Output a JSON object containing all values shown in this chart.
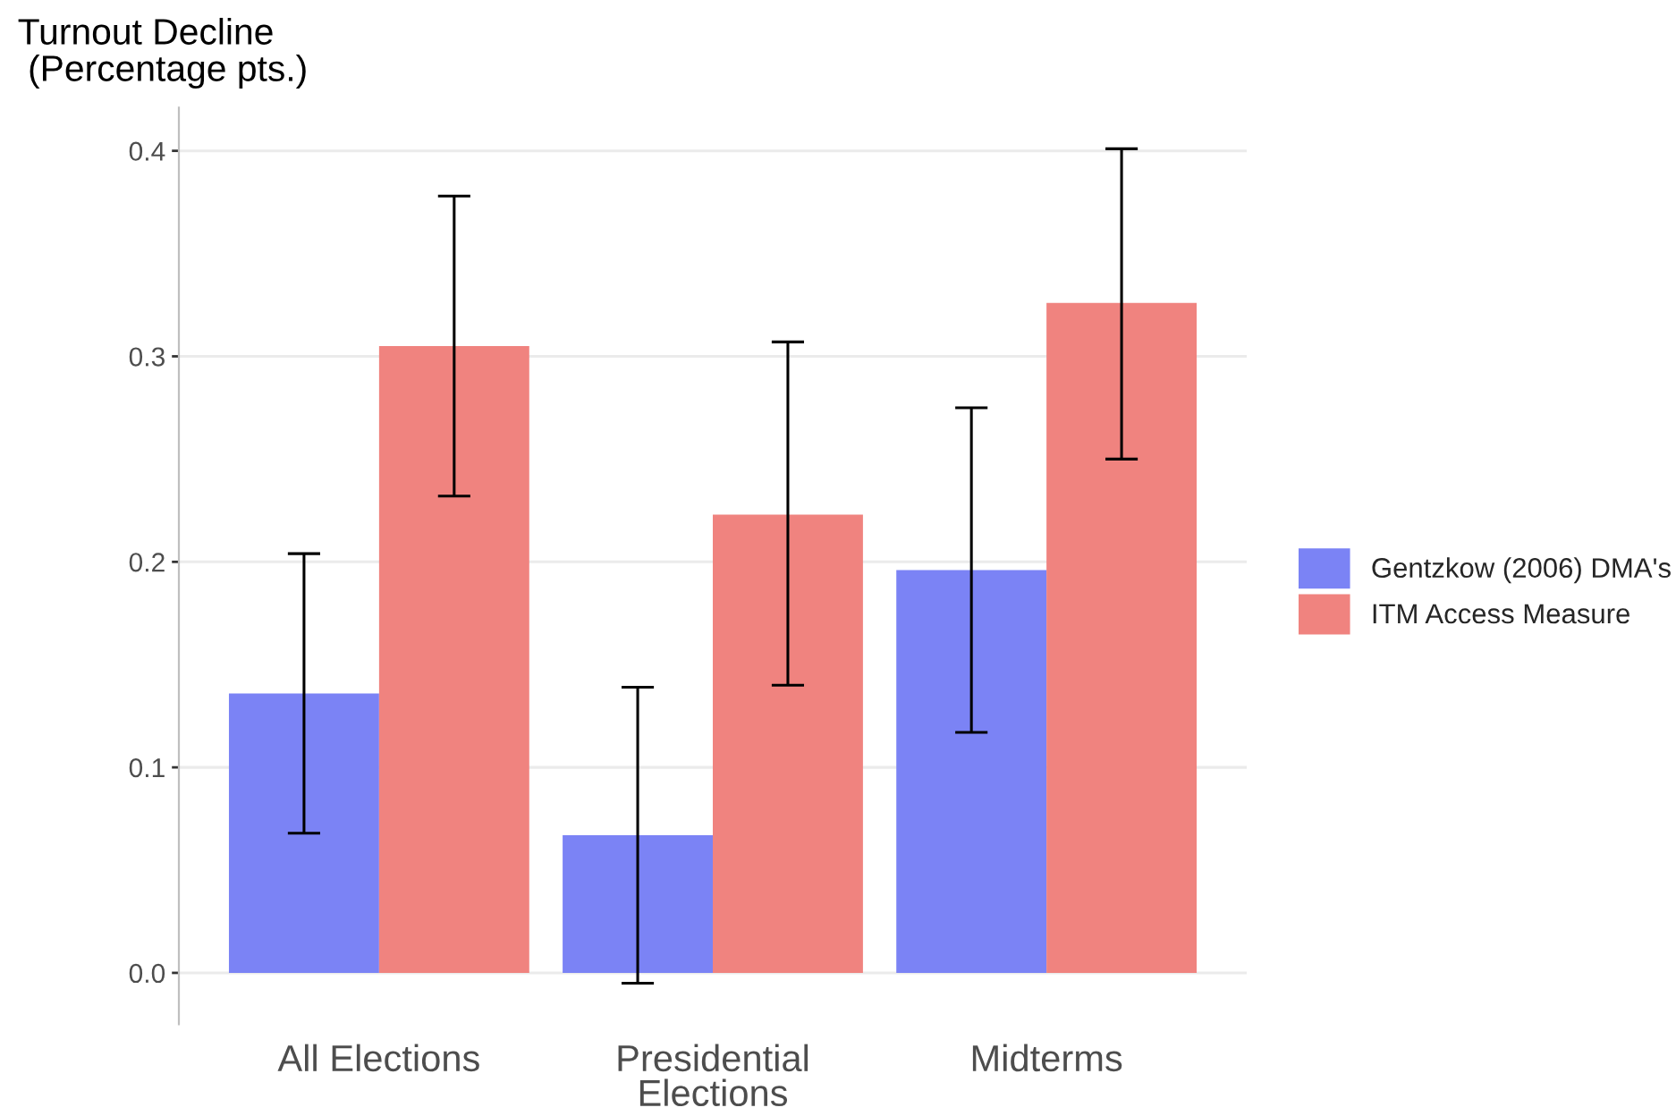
{
  "chart_data": {
    "type": "bar",
    "ylabel": "Turnout Decline\n (Percentage pts.)",
    "categories": [
      "All Elections",
      "Presidential\nElections",
      "Midterms"
    ],
    "series": [
      {
        "name": "Gentzkow (2006) DMA's",
        "color": "#7b83f5",
        "values": [
          0.136,
          0.067,
          0.196
        ],
        "errors": [
          [
            0.068,
            0.204
          ],
          [
            -0.005,
            0.139
          ],
          [
            0.117,
            0.275
          ]
        ]
      },
      {
        "name": "ITM Access Measure",
        "color": "#f0837f",
        "values": [
          0.305,
          0.223,
          0.326
        ],
        "errors": [
          [
            0.232,
            0.378
          ],
          [
            0.14,
            0.307
          ],
          [
            0.25,
            0.401
          ]
        ]
      }
    ],
    "ylim": [
      -0.025,
      0.421
    ],
    "yticks": [
      {
        "value": 0,
        "label": "0.0"
      },
      0.1,
      0.2,
      0.3,
      0.4
    ],
    "grid": "y",
    "legend": "right"
  }
}
